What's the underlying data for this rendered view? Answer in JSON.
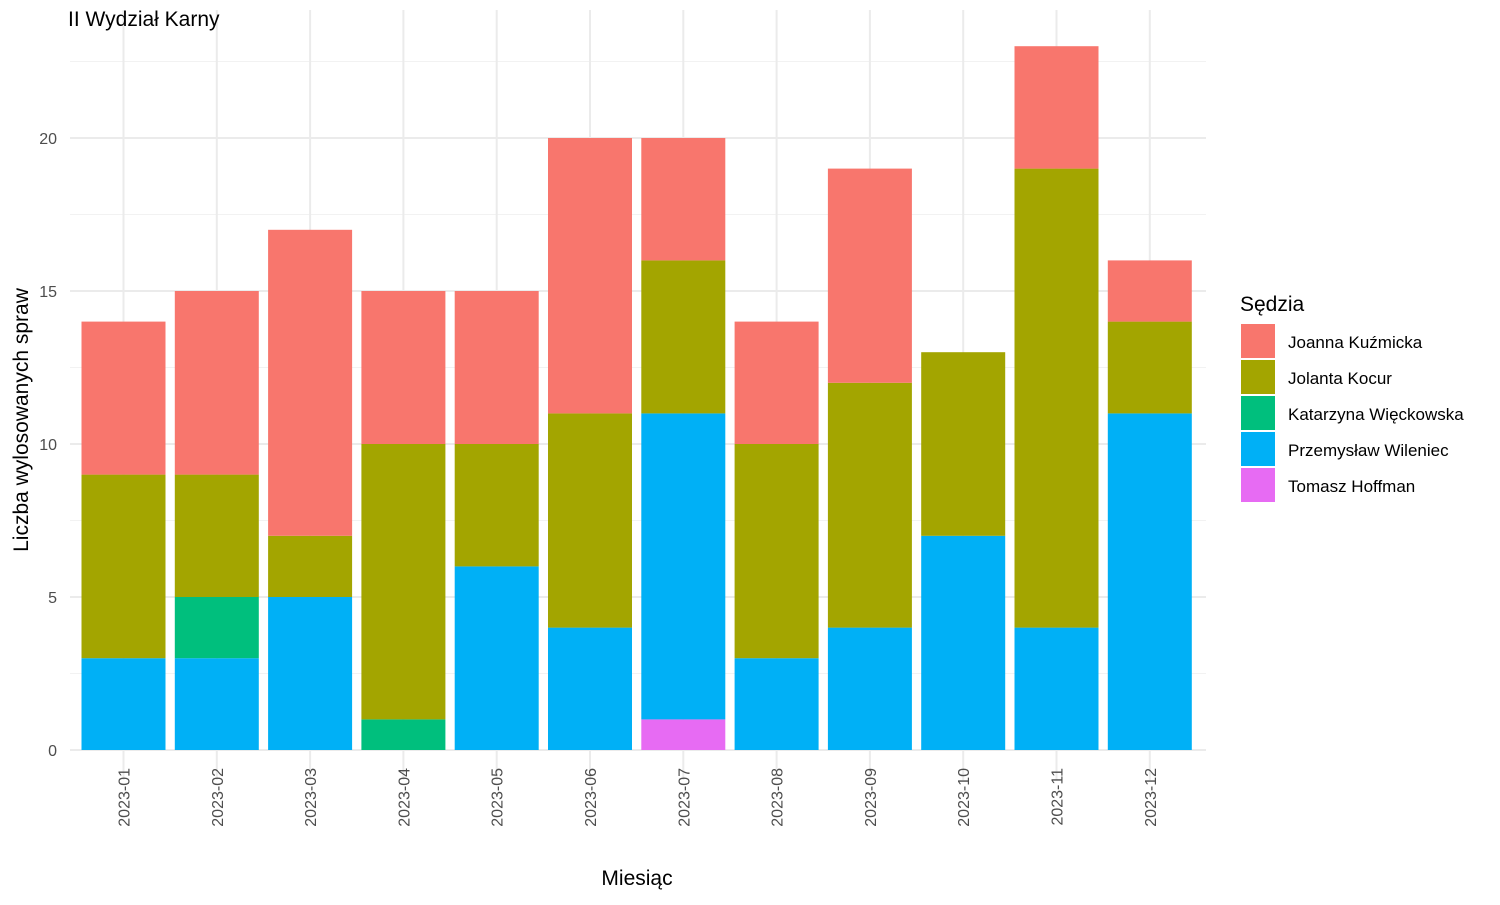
{
  "chart_data": {
    "type": "bar",
    "stacked": true,
    "title": "II Wydział Karny",
    "xlabel": "Miesiąc",
    "ylabel": "Liczba wylosowanych spraw",
    "ylim": [
      0,
      24
    ],
    "y_ticks": [
      0,
      5,
      10,
      15,
      20
    ],
    "grid": true,
    "legend": {
      "title": "Sędzia",
      "position": "right"
    },
    "categories": [
      "2023-01",
      "2023-02",
      "2023-03",
      "2023-04",
      "2023-05",
      "2023-06",
      "2023-07",
      "2023-08",
      "2023-09",
      "2023-10",
      "2023-11",
      "2023-12"
    ],
    "series": [
      {
        "name": "Tomasz Hoffman",
        "color": "#E76BF3",
        "values": [
          0,
          0,
          0,
          0,
          0,
          0,
          1,
          0,
          0,
          0,
          0,
          0
        ]
      },
      {
        "name": "Przemysław Wileniec",
        "color": "#00B0F6",
        "values": [
          3,
          3,
          5,
          0,
          6,
          4,
          10,
          3,
          4,
          7,
          4,
          11
        ]
      },
      {
        "name": "Katarzyna Więckowska",
        "color": "#00BF7D",
        "values": [
          0,
          2,
          0,
          1,
          0,
          0,
          0,
          0,
          0,
          0,
          0,
          0
        ]
      },
      {
        "name": "Jolanta Kocur",
        "color": "#A3A500",
        "values": [
          6,
          4,
          2,
          9,
          4,
          7,
          5,
          7,
          8,
          6,
          15,
          3
        ]
      },
      {
        "name": "Joanna Kuźmicka",
        "color": "#F8766D",
        "values": [
          5,
          6,
          10,
          5,
          5,
          9,
          4,
          4,
          7,
          0,
          4,
          2
        ]
      }
    ],
    "legend_order": [
      "Joanna Kuźmicka",
      "Jolanta Kocur",
      "Katarzyna Więckowska",
      "Przemysław Wileniec",
      "Tomasz Hoffman"
    ]
  }
}
